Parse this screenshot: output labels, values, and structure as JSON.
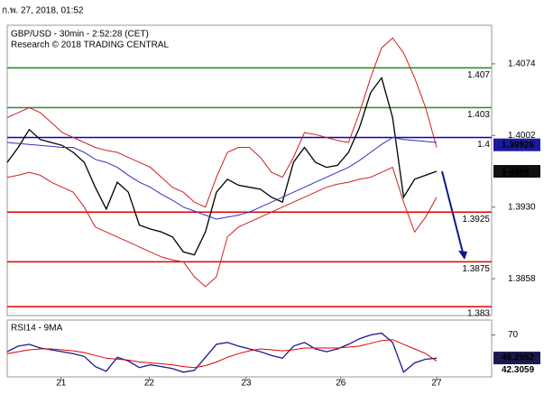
{
  "header": {
    "timestamp": "ก.พ. 27, 2018, 01:52"
  },
  "chart_data": [
    {
      "type": "line",
      "title": "GBP/USD - 30min - 2:52:28 (CET)",
      "subtitle": "Research © 2018 TRADING CENTRAL",
      "x": [
        0,
        1,
        2,
        3,
        4,
        5,
        6,
        7,
        8,
        9,
        10,
        11,
        12,
        13,
        14,
        15,
        16,
        17,
        18,
        19,
        20,
        21,
        22,
        23,
        24,
        25,
        26,
        27,
        28,
        29,
        30,
        31,
        32,
        33,
        34,
        35,
        36,
        37,
        38,
        39
      ],
      "xlim": [
        0,
        44
      ],
      "xticks": [
        {
          "value": 4.9,
          "label": "21"
        },
        {
          "value": 12.9,
          "label": "22"
        },
        {
          "value": 21.7,
          "label": "23"
        },
        {
          "value": 30.3,
          "label": "26"
        },
        {
          "value": 39,
          "label": "27"
        }
      ],
      "ylim": [
        1.3821,
        1.4111
      ],
      "yticks": [
        1.4074,
        1.4002,
        {
          "value": 1.393,
          "label": "1.3930"
        },
        1.3858
      ],
      "series": [
        {
          "color": "#000000",
          "values": [
            1.3975,
            1.399,
            1.4008,
            1.3998,
            1.3995,
            1.3992,
            1.3985,
            1.3975,
            1.395,
            1.3928,
            1.3955,
            1.3945,
            1.3912,
            1.3908,
            1.3905,
            1.39,
            1.3885,
            1.3882,
            1.3905,
            1.3945,
            1.3958,
            1.3952,
            1.395,
            1.3948,
            1.394,
            1.3935,
            1.3975,
            1.399,
            1.3975,
            1.397,
            1.3972,
            1.3985,
            1.401,
            1.4045,
            1.406,
            1.402,
            1.394,
            1.3958,
            1.3962,
            1.3966
          ]
        },
        {
          "color": "#d02020",
          "values": [
            1.402,
            1.4025,
            1.403,
            1.4025,
            1.4015,
            1.4005,
            1.4,
            1.3995,
            1.399,
            1.3987,
            1.3985,
            1.398,
            1.3975,
            1.397,
            1.396,
            1.395,
            1.3945,
            1.3935,
            1.393,
            1.396,
            1.3985,
            1.399,
            1.399,
            1.398,
            1.3965,
            1.396,
            1.398,
            1.4005,
            1.4003,
            1.4,
            1.3997,
            1.3995,
            1.4025,
            1.406,
            1.409,
            1.41,
            1.4085,
            1.406,
            1.403,
            1.399
          ]
        },
        {
          "color": "#d02020",
          "values": [
            1.396,
            1.3962,
            1.3965,
            1.3962,
            1.3955,
            1.395,
            1.3945,
            1.393,
            1.391,
            1.3905,
            1.39,
            1.3895,
            1.389,
            1.3885,
            1.388,
            1.3877,
            1.3875,
            1.386,
            1.385,
            1.386,
            1.39,
            1.391,
            1.3915,
            1.392,
            1.3925,
            1.393,
            1.3935,
            1.394,
            1.3945,
            1.395,
            1.3953,
            1.3955,
            1.3958,
            1.396,
            1.3965,
            1.397,
            1.3935,
            1.3905,
            1.392,
            1.394
          ]
        },
        {
          "color": "#3030c0",
          "values": [
            1.3995,
            1.3994,
            1.3993,
            1.3992,
            1.3991,
            1.399,
            1.399,
            1.3985,
            1.3978,
            1.3975,
            1.397,
            1.3962,
            1.3955,
            1.395,
            1.3943,
            1.3937,
            1.393,
            1.3926,
            1.3922,
            1.3918,
            1.392,
            1.3922,
            1.3925,
            1.393,
            1.3935,
            1.394,
            1.3945,
            1.395,
            1.3955,
            1.396,
            1.3965,
            1.397,
            1.3977,
            1.3985,
            1.3993,
            1.4,
            1.3998,
            1.3997,
            1.3996,
            1.3995
          ]
        }
      ],
      "levels": [
        {
          "value": 1.407,
          "color": "#2a8a2a"
        },
        {
          "value": 1.403,
          "color": "#2a8a2a"
        },
        {
          "value": 1.4,
          "color": "#0000c0"
        },
        {
          "value": 1.3925,
          "color": "#e00000"
        },
        {
          "value": 1.3875,
          "color": "#e00000"
        },
        {
          "value": 1.383,
          "color": "#e00000"
        }
      ],
      "price_labels": [
        {
          "value": 1.39926,
          "color": "#1a1aa0",
          "boxed": true
        },
        {
          "value": 1.3966,
          "color": "#111111",
          "boxed": true
        },
        {
          "value": 1.3963,
          "color": "#e00000",
          "boxed": false
        }
      ]
    },
    {
      "type": "line",
      "title": "RSI14 - 9MA",
      "x": [
        0,
        1,
        2,
        3,
        4,
        5,
        6,
        7,
        8,
        9,
        10,
        11,
        12,
        13,
        14,
        15,
        16,
        17,
        18,
        19,
        20,
        21,
        22,
        23,
        24,
        25,
        26,
        27,
        28,
        29,
        30,
        31,
        32,
        33,
        34,
        35,
        36,
        37,
        38,
        39
      ],
      "xlim": [
        0,
        44
      ],
      "ylim": [
        25,
        86
      ],
      "yticks": [
        70
      ],
      "series": [
        {
          "color": "#1a1a90",
          "values": [
            52,
            58,
            60,
            56,
            54,
            52,
            50,
            47,
            36,
            31,
            46,
            42,
            35,
            38,
            36,
            34,
            30,
            32,
            46,
            60,
            62,
            58,
            55,
            52,
            48,
            45,
            58,
            62,
            55,
            52,
            55,
            60,
            66,
            70,
            72,
            62,
            30,
            40,
            44,
            45
          ]
        },
        {
          "color": "#e00000",
          "values": [
            50,
            52,
            54,
            55,
            55,
            54,
            53,
            51,
            48,
            45,
            44,
            43,
            41,
            40,
            39,
            38,
            36,
            35,
            37,
            41,
            46,
            50,
            53,
            55,
            54,
            53,
            54,
            56,
            56,
            56,
            56,
            57,
            58,
            61,
            64,
            65,
            60,
            55,
            50,
            42
          ]
        }
      ],
      "price_labels": [
        {
          "value": 45.2952,
          "color": "#1a1a50",
          "boxed": true
        },
        {
          "value": 42.3059,
          "color": "#e00000",
          "boxed": false
        }
      ]
    }
  ]
}
